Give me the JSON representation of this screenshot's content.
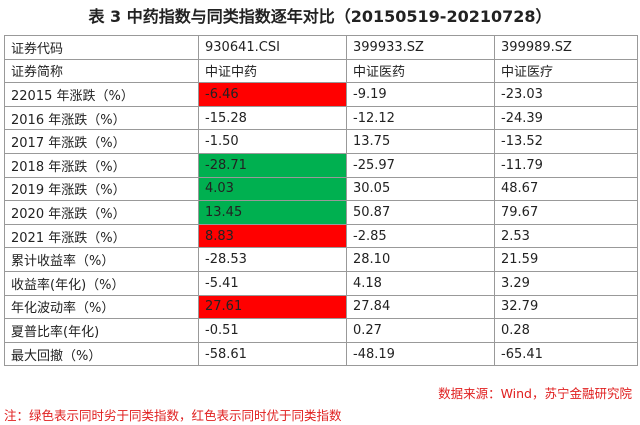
{
  "title": "表 3  中药指数与同类指数逐年对比（20150519-20210728）",
  "table": {
    "rows": [
      [
        "证券代码",
        "930641.CSI",
        "399933.SZ",
        "399989.SZ"
      ],
      [
        "证券简称",
        "中证中药",
        "中证医药",
        "中证医疗"
      ],
      [
        "22015 年涨跌（%）",
        "-6.46",
        "-9.19",
        "-23.03"
      ],
      [
        "2016 年涨跌（%）",
        "-15.28",
        "-12.12",
        "-24.39"
      ],
      [
        "2017 年涨跌（%）",
        "-1.50",
        "13.75",
        "-13.52"
      ],
      [
        "2018 年涨跌（%）",
        "-28.71",
        "-25.97",
        "-11.79"
      ],
      [
        "2019 年涨跌（%）",
        "4.03",
        "30.05",
        "48.67"
      ],
      [
        "2020 年涨跌（%）",
        "13.45",
        "50.87",
        "79.67"
      ],
      [
        "2021 年涨跌（%）",
        "8.83",
        "-2.85",
        "2.53"
      ],
      [
        "累计收益率（%）",
        "-28.53",
        "28.10",
        "21.59"
      ],
      [
        "收益率(年化)（%）",
        "-5.41",
        "4.18",
        "3.29"
      ],
      [
        "年化波动率（%）",
        "27.61",
        "27.84",
        "32.79"
      ],
      [
        "夏普比率(年化)",
        "-0.51",
        "0.27",
        "0.28"
      ],
      [
        "最大回撤（%）",
        "-58.61",
        "-48.19",
        "-65.41"
      ]
    ],
    "cell_colors": [
      {
        "row": 2,
        "col": 1,
        "color": "#ff0000"
      },
      {
        "row": 5,
        "col": 1,
        "color": "#00b050"
      },
      {
        "row": 6,
        "col": 1,
        "color": "#00b050"
      },
      {
        "row": 7,
        "col": 1,
        "color": "#00b050"
      },
      {
        "row": 8,
        "col": 1,
        "color": "#ff0000"
      },
      {
        "row": 11,
        "col": 1,
        "color": "#ff0000"
      }
    ]
  },
  "source": "数据来源：Wind，苏宁金融研究院",
  "note": "注：绿色表示同时劣于同类指数，红色表示同时优于同类指数"
}
